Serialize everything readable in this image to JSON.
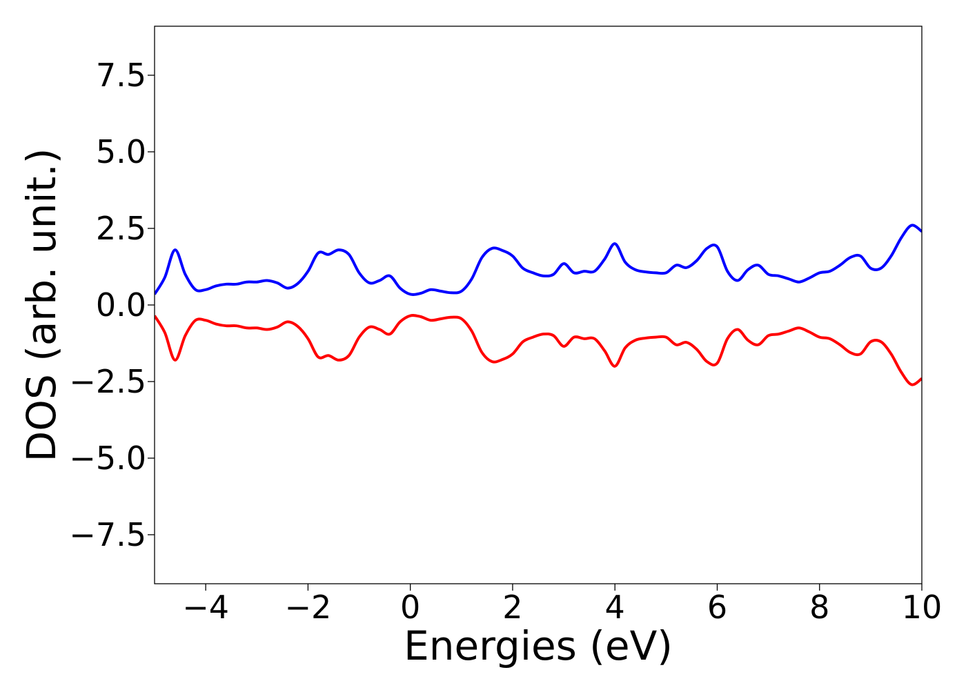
{
  "chart_data": {
    "type": "line",
    "title": "",
    "xlabel": "Energies (eV)",
    "ylabel": "DOS (arb. unit.)",
    "xlim": [
      -5,
      10
    ],
    "ylim": [
      -9.1,
      9.1
    ],
    "grid": false,
    "legend": "none",
    "x_ticks": [
      -4,
      -2,
      0,
      2,
      4,
      6,
      8,
      10
    ],
    "x_tick_labels": [
      "−4",
      "−2",
      "0",
      "2",
      "4",
      "6",
      "8",
      "10"
    ],
    "y_ticks": [
      7.5,
      5.0,
      2.5,
      0.0,
      -2.5,
      -5.0,
      -7.5
    ],
    "y_tick_labels": [
      "7.5",
      "5.0",
      "2.5",
      "0.0",
      "−2.5",
      "−5.0",
      "−7.5"
    ],
    "x": [
      -5.0,
      -4.8,
      -4.6,
      -4.4,
      -4.2,
      -4.0,
      -3.8,
      -3.6,
      -3.4,
      -3.2,
      -3.0,
      -2.8,
      -2.6,
      -2.4,
      -2.2,
      -2.0,
      -1.8,
      -1.6,
      -1.4,
      -1.2,
      -1.0,
      -0.8,
      -0.6,
      -0.4,
      -0.2,
      0.0,
      0.2,
      0.4,
      0.6,
      0.8,
      1.0,
      1.2,
      1.4,
      1.6,
      1.8,
      2.0,
      2.2,
      2.4,
      2.6,
      2.8,
      3.0,
      3.2,
      3.4,
      3.6,
      3.8,
      4.0,
      4.2,
      4.4,
      4.6,
      4.8,
      5.0,
      5.2,
      5.4,
      5.6,
      5.8,
      6.0,
      6.2,
      6.4,
      6.6,
      6.8,
      7.0,
      7.2,
      7.4,
      7.6,
      7.8,
      8.0,
      8.2,
      8.4,
      8.6,
      8.8,
      9.0,
      9.2,
      9.4,
      9.6,
      9.8,
      10.0
    ],
    "series": [
      {
        "color": "#0000ff",
        "values": [
          0.35,
          0.9,
          1.8,
          1.0,
          0.5,
          0.5,
          0.62,
          0.68,
          0.68,
          0.75,
          0.75,
          0.8,
          0.72,
          0.55,
          0.7,
          1.1,
          1.7,
          1.65,
          1.8,
          1.65,
          1.05,
          0.72,
          0.8,
          0.95,
          0.55,
          0.35,
          0.38,
          0.5,
          0.45,
          0.4,
          0.45,
          0.85,
          1.55,
          1.85,
          1.78,
          1.6,
          1.2,
          1.05,
          0.95,
          1.0,
          1.35,
          1.05,
          1.1,
          1.1,
          1.5,
          2.0,
          1.4,
          1.15,
          1.08,
          1.05,
          1.05,
          1.3,
          1.22,
          1.45,
          1.85,
          1.9,
          1.1,
          0.8,
          1.15,
          1.3,
          1.0,
          0.95,
          0.85,
          0.75,
          0.88,
          1.05,
          1.1,
          1.3,
          1.55,
          1.6,
          1.2,
          1.2,
          1.6,
          2.2,
          2.6,
          2.4
        ]
      },
      {
        "color": "#ff0000",
        "values": [
          -0.35,
          -0.9,
          -1.8,
          -1.0,
          -0.5,
          -0.5,
          -0.62,
          -0.68,
          -0.68,
          -0.75,
          -0.75,
          -0.8,
          -0.72,
          -0.55,
          -0.7,
          -1.1,
          -1.7,
          -1.65,
          -1.8,
          -1.65,
          -1.05,
          -0.72,
          -0.8,
          -0.95,
          -0.55,
          -0.35,
          -0.38,
          -0.5,
          -0.45,
          -0.4,
          -0.45,
          -0.85,
          -1.55,
          -1.85,
          -1.78,
          -1.6,
          -1.2,
          -1.05,
          -0.95,
          -1.0,
          -1.35,
          -1.05,
          -1.1,
          -1.1,
          -1.5,
          -2.0,
          -1.4,
          -1.15,
          -1.08,
          -1.05,
          -1.05,
          -1.3,
          -1.22,
          -1.45,
          -1.85,
          -1.9,
          -1.1,
          -0.8,
          -1.15,
          -1.3,
          -1.0,
          -0.95,
          -0.85,
          -0.75,
          -0.88,
          -1.05,
          -1.1,
          -1.3,
          -1.55,
          -1.6,
          -1.2,
          -1.2,
          -1.6,
          -2.2,
          -2.6,
          -2.4
        ]
      }
    ]
  }
}
